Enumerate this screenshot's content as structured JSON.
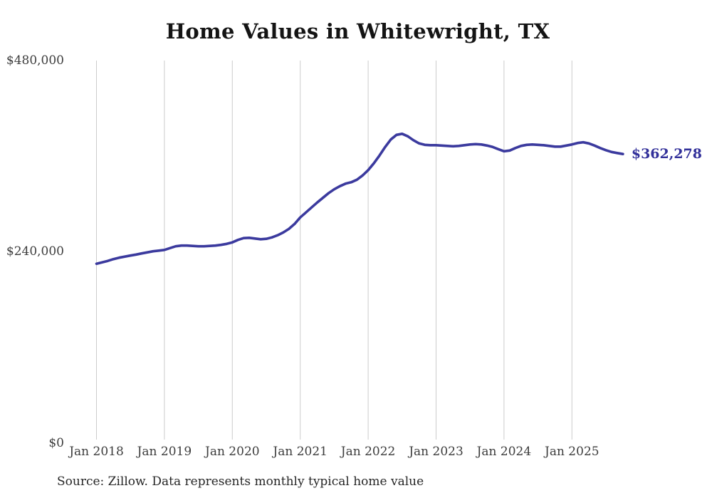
{
  "chart": {
    "title": "Home Values in Whitewright, TX",
    "source": "Source: Zillow. Data represents monthly typical home value",
    "end_label": "$362,278",
    "colors": {
      "line": "#3b3a9e",
      "end_label": "#32309a",
      "gridline": "#cccccc",
      "tick_text": "#3d3d3d",
      "title_text": "#141414",
      "source_text": "#262626",
      "background": "#ffffff"
    }
  },
  "chart_data": {
    "type": "line",
    "title": "Home Values in Whitewright, TX",
    "series_name": "Monthly typical home value",
    "legend": "none",
    "grid": "vertical-only",
    "ylim": [
      0,
      480000
    ],
    "yticks": [
      {
        "label": "$0",
        "value": 0
      },
      {
        "label": "$240,000",
        "value": 240000
      },
      {
        "label": "$480,000",
        "value": 480000
      }
    ],
    "xticks": [
      "Jan 2018",
      "Jan 2019",
      "Jan 2020",
      "Jan 2021",
      "Jan 2022",
      "Jan 2023",
      "Jan 2024",
      "Jan 2025"
    ],
    "end_label": "$362,278",
    "last_value": 362278,
    "months": [
      "2018-01",
      "2018-02",
      "2018-03",
      "2018-04",
      "2018-05",
      "2018-06",
      "2018-07",
      "2018-08",
      "2018-09",
      "2018-10",
      "2018-11",
      "2018-12",
      "2019-01",
      "2019-02",
      "2019-03",
      "2019-04",
      "2019-05",
      "2019-06",
      "2019-07",
      "2019-08",
      "2019-09",
      "2019-10",
      "2019-11",
      "2019-12",
      "2020-01",
      "2020-02",
      "2020-03",
      "2020-04",
      "2020-05",
      "2020-06",
      "2020-07",
      "2020-08",
      "2020-09",
      "2020-10",
      "2020-11",
      "2020-12",
      "2021-01",
      "2021-02",
      "2021-03",
      "2021-04",
      "2021-05",
      "2021-06",
      "2021-07",
      "2021-08",
      "2021-09",
      "2021-10",
      "2021-11",
      "2021-12",
      "2022-01",
      "2022-02",
      "2022-03",
      "2022-04",
      "2022-05",
      "2022-06",
      "2022-07",
      "2022-08",
      "2022-09",
      "2022-10",
      "2022-11",
      "2022-12",
      "2023-01",
      "2023-02",
      "2023-03",
      "2023-04",
      "2023-05",
      "2023-06",
      "2023-07",
      "2023-08",
      "2023-09",
      "2023-10",
      "2023-11",
      "2023-12",
      "2024-01",
      "2024-02",
      "2024-03",
      "2024-04",
      "2024-05",
      "2024-06",
      "2024-07",
      "2024-08",
      "2024-09",
      "2024-10",
      "2024-11",
      "2024-12",
      "2025-01",
      "2025-02",
      "2025-03",
      "2025-04",
      "2025-05",
      "2025-06",
      "2025-07",
      "2025-08",
      "2025-09",
      "2025-10"
    ],
    "values": [
      224600,
      226400,
      228200,
      230400,
      232200,
      233600,
      234900,
      236200,
      237600,
      238900,
      240300,
      241100,
      242000,
      244300,
      246500,
      247400,
      247400,
      247000,
      246500,
      246500,
      247000,
      247400,
      248300,
      249600,
      251400,
      254600,
      256800,
      257200,
      256300,
      255400,
      255900,
      257700,
      260400,
      263900,
      268400,
      274600,
      282700,
      289000,
      295200,
      301500,
      307300,
      313100,
      318000,
      322000,
      325100,
      326900,
      330000,
      335400,
      342100,
      350600,
      360400,
      371100,
      380500,
      386300,
      387700,
      384500,
      379600,
      375600,
      373800,
      373400,
      373400,
      372900,
      372500,
      372000,
      372500,
      373400,
      374300,
      374700,
      374300,
      372900,
      371100,
      368400,
      365800,
      366700,
      369800,
      372500,
      373800,
      374300,
      373800,
      373400,
      372500,
      371600,
      371600,
      372900,
      374300,
      376100,
      377000,
      375600,
      372900,
      369800,
      367100,
      364900,
      363500,
      362278
    ]
  }
}
